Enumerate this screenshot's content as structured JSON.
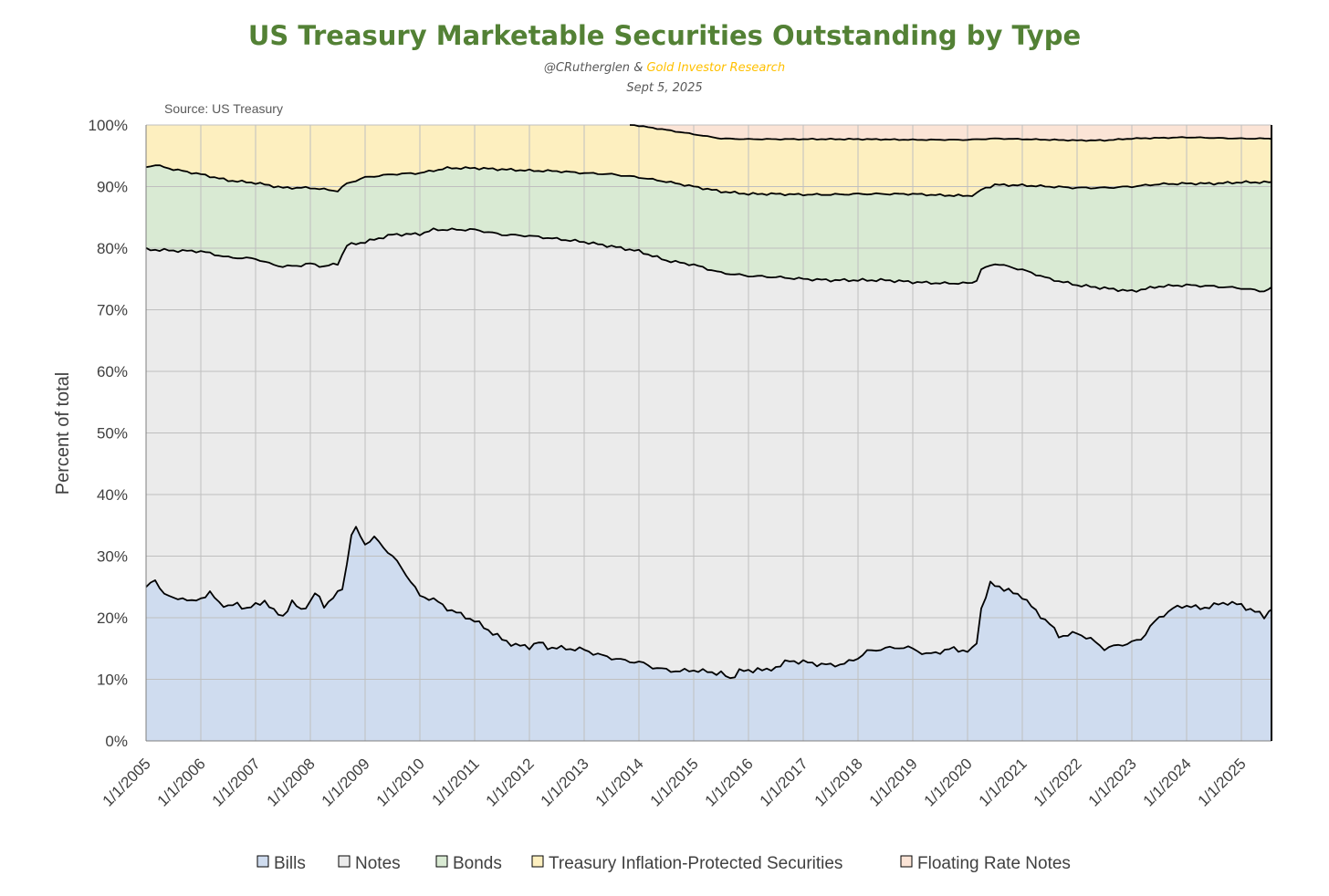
{
  "title": "US Treasury Marketable Securities Outstanding by Type",
  "byline": {
    "author": "@CRutherglen",
    "sep": " & ",
    "org": "Gold Investor Research"
  },
  "date": "Sept 5, 2025",
  "colors": {
    "title": "#538135",
    "org": "#ffc000",
    "bills": "#cfdcef",
    "notes": "#ebebeb",
    "bonds": "#d9ead3",
    "tips": "#fdefbf",
    "frn": "#fbe4d6",
    "line": "#000000",
    "grid": "#bfbfbf"
  },
  "chart_data": {
    "type": "area",
    "stacked": true,
    "source": "Source: US Treasury",
    "ylabel": "Percent of total",
    "ylim": [
      0,
      100
    ],
    "yticks": [
      "0%",
      "10%",
      "20%",
      "30%",
      "40%",
      "50%",
      "60%",
      "70%",
      "80%",
      "90%",
      "100%"
    ],
    "xlim": [
      2005.0,
      2025.55
    ],
    "xticks": [
      "1/1/2005",
      "1/1/2006",
      "1/1/2007",
      "1/1/2008",
      "1/1/2009",
      "1/1/2010",
      "1/1/2011",
      "1/1/2012",
      "1/1/2013",
      "1/1/2014",
      "1/1/2015",
      "1/1/2016",
      "1/1/2017",
      "1/1/2018",
      "1/1/2019",
      "1/1/2020",
      "1/1/2021",
      "1/1/2022",
      "1/1/2023",
      "1/1/2024",
      "1/1/2025"
    ],
    "legend": [
      "Bills",
      "Notes",
      "Bonds",
      "Treasury Inflation-Protected Securities",
      "Floating Rate Notes"
    ],
    "cumulative_boundaries": {
      "bills": [
        [
          2005.0,
          25.0
        ],
        [
          2005.17,
          26.0
        ],
        [
          2005.33,
          24.0
        ],
        [
          2005.5,
          23.0
        ],
        [
          2005.67,
          23.3
        ],
        [
          2005.83,
          22.5
        ],
        [
          2006.0,
          23.2
        ],
        [
          2006.17,
          24.0
        ],
        [
          2006.33,
          22.5
        ],
        [
          2006.5,
          21.8
        ],
        [
          2006.67,
          22.2
        ],
        [
          2006.83,
          21.5
        ],
        [
          2007.0,
          22.0
        ],
        [
          2007.17,
          22.8
        ],
        [
          2007.33,
          21.0
        ],
        [
          2007.5,
          20.3
        ],
        [
          2007.67,
          22.5
        ],
        [
          2007.83,
          21.3
        ],
        [
          2008.0,
          22.5
        ],
        [
          2008.1,
          24.2
        ],
        [
          2008.25,
          22.0
        ],
        [
          2008.4,
          23.0
        ],
        [
          2008.6,
          25.0
        ],
        [
          2008.75,
          33.5
        ],
        [
          2008.83,
          34.5
        ],
        [
          2009.0,
          32.0
        ],
        [
          2009.17,
          33.0
        ],
        [
          2009.33,
          31.5
        ],
        [
          2009.5,
          30.0
        ],
        [
          2009.67,
          28.0
        ],
        [
          2009.83,
          26.0
        ],
        [
          2010.0,
          23.5
        ],
        [
          2010.25,
          23.0
        ],
        [
          2010.5,
          21.5
        ],
        [
          2010.75,
          20.5
        ],
        [
          2011.0,
          19.5
        ],
        [
          2011.25,
          18.0
        ],
        [
          2011.5,
          16.5
        ],
        [
          2011.75,
          15.5
        ],
        [
          2012.0,
          15.3
        ],
        [
          2012.17,
          16.0
        ],
        [
          2012.33,
          15.2
        ],
        [
          2012.67,
          15.0
        ],
        [
          2013.0,
          14.8
        ],
        [
          2013.25,
          14.0
        ],
        [
          2013.5,
          13.5
        ],
        [
          2013.75,
          13.0
        ],
        [
          2014.0,
          12.8
        ],
        [
          2014.25,
          12.0
        ],
        [
          2014.5,
          11.5
        ],
        [
          2014.75,
          11.3
        ],
        [
          2015.0,
          11.5
        ],
        [
          2015.25,
          11.2
        ],
        [
          2015.5,
          11.0
        ],
        [
          2015.67,
          10.0
        ],
        [
          2015.83,
          11.5
        ],
        [
          2016.0,
          11.2
        ],
        [
          2016.17,
          11.8
        ],
        [
          2016.33,
          11.3
        ],
        [
          2016.5,
          12.0
        ],
        [
          2016.75,
          13.0
        ],
        [
          2017.0,
          12.8
        ],
        [
          2017.25,
          12.5
        ],
        [
          2017.5,
          12.3
        ],
        [
          2017.75,
          12.5
        ],
        [
          2018.0,
          13.5
        ],
        [
          2018.17,
          14.5
        ],
        [
          2018.33,
          14.8
        ],
        [
          2018.5,
          15.0
        ],
        [
          2018.75,
          15.2
        ],
        [
          2019.0,
          15.0
        ],
        [
          2019.25,
          14.0
        ],
        [
          2019.5,
          14.5
        ],
        [
          2019.75,
          15.0
        ],
        [
          2020.0,
          14.5
        ],
        [
          2020.15,
          15.0
        ],
        [
          2020.25,
          21.5
        ],
        [
          2020.42,
          25.5
        ],
        [
          2020.6,
          25.0
        ],
        [
          2020.83,
          24.0
        ],
        [
          2021.0,
          23.5
        ],
        [
          2021.25,
          21.0
        ],
        [
          2021.5,
          19.0
        ],
        [
          2021.67,
          17.0
        ],
        [
          2021.83,
          17.2
        ],
        [
          2022.0,
          17.5
        ],
        [
          2022.25,
          16.5
        ],
        [
          2022.5,
          15.0
        ],
        [
          2022.75,
          15.5
        ],
        [
          2023.0,
          16.0
        ],
        [
          2023.17,
          16.5
        ],
        [
          2023.33,
          18.5
        ],
        [
          2023.5,
          20.0
        ],
        [
          2023.75,
          21.5
        ],
        [
          2024.0,
          22.0
        ],
        [
          2024.25,
          21.5
        ],
        [
          2024.5,
          22.0
        ],
        [
          2024.75,
          22.5
        ],
        [
          2025.0,
          22.0
        ],
        [
          2025.25,
          21.0
        ],
        [
          2025.42,
          20.2
        ],
        [
          2025.55,
          21.5
        ]
      ],
      "notes": [
        [
          2005.0,
          79.8
        ],
        [
          2005.5,
          79.6
        ],
        [
          2006.0,
          79.5
        ],
        [
          2006.5,
          78.5
        ],
        [
          2007.0,
          78.3
        ],
        [
          2007.25,
          77.5
        ],
        [
          2007.5,
          77.0
        ],
        [
          2007.83,
          77.2
        ],
        [
          2008.0,
          77.5
        ],
        [
          2008.25,
          77.0
        ],
        [
          2008.5,
          77.5
        ],
        [
          2008.67,
          80.5
        ],
        [
          2009.0,
          81.0
        ],
        [
          2009.5,
          82.2
        ],
        [
          2010.0,
          82.3
        ],
        [
          2010.25,
          83.0
        ],
        [
          2011.0,
          83.0
        ],
        [
          2011.5,
          82.2
        ],
        [
          2012.0,
          82.0
        ],
        [
          2012.5,
          81.5
        ],
        [
          2013.0,
          81.0
        ],
        [
          2013.5,
          80.3
        ],
        [
          2014.0,
          79.5
        ],
        [
          2014.5,
          78.0
        ],
        [
          2015.0,
          77.3
        ],
        [
          2015.5,
          76.0
        ],
        [
          2016.0,
          75.5
        ],
        [
          2016.5,
          75.3
        ],
        [
          2017.0,
          75.0
        ],
        [
          2017.5,
          74.8
        ],
        [
          2018.0,
          74.8
        ],
        [
          2018.5,
          74.8
        ],
        [
          2019.0,
          74.5
        ],
        [
          2019.5,
          74.3
        ],
        [
          2020.0,
          74.3
        ],
        [
          2020.15,
          74.5
        ],
        [
          2020.25,
          76.5
        ],
        [
          2020.5,
          77.5
        ],
        [
          2021.0,
          76.5
        ],
        [
          2021.5,
          75.0
        ],
        [
          2022.0,
          74.0
        ],
        [
          2022.5,
          73.5
        ],
        [
          2023.0,
          73.0
        ],
        [
          2023.5,
          73.8
        ],
        [
          2024.0,
          74.0
        ],
        [
          2024.5,
          73.8
        ],
        [
          2025.0,
          73.5
        ],
        [
          2025.4,
          73.0
        ],
        [
          2025.55,
          73.5
        ]
      ],
      "bonds": [
        [
          2005.0,
          93.2
        ],
        [
          2005.17,
          93.5
        ],
        [
          2005.5,
          92.8
        ],
        [
          2006.0,
          92.0
        ],
        [
          2006.5,
          91.0
        ],
        [
          2007.0,
          90.6
        ],
        [
          2007.5,
          89.8
        ],
        [
          2008.0,
          89.8
        ],
        [
          2008.5,
          89.3
        ],
        [
          2008.67,
          90.5
        ],
        [
          2009.0,
          91.5
        ],
        [
          2009.5,
          92.0
        ],
        [
          2010.0,
          92.2
        ],
        [
          2010.5,
          93.0
        ],
        [
          2011.0,
          93.0
        ],
        [
          2011.5,
          92.8
        ],
        [
          2012.0,
          92.6
        ],
        [
          2012.5,
          92.5
        ],
        [
          2013.0,
          92.2
        ],
        [
          2013.5,
          92.0
        ],
        [
          2014.0,
          91.5
        ],
        [
          2014.5,
          90.8
        ],
        [
          2015.0,
          90.0
        ],
        [
          2015.5,
          89.2
        ],
        [
          2016.0,
          88.8
        ],
        [
          2016.5,
          88.8
        ],
        [
          2017.0,
          88.7
        ],
        [
          2017.5,
          88.7
        ],
        [
          2018.0,
          88.8
        ],
        [
          2018.5,
          88.8
        ],
        [
          2019.0,
          88.8
        ],
        [
          2019.5,
          88.6
        ],
        [
          2020.0,
          88.5
        ],
        [
          2020.15,
          88.7
        ],
        [
          2020.25,
          89.5
        ],
        [
          2020.5,
          90.3
        ],
        [
          2021.0,
          90.2
        ],
        [
          2021.5,
          90.0
        ],
        [
          2022.0,
          89.8
        ],
        [
          2022.5,
          89.8
        ],
        [
          2023.0,
          90.0
        ],
        [
          2023.5,
          90.4
        ],
        [
          2024.0,
          90.5
        ],
        [
          2024.5,
          90.5
        ],
        [
          2025.0,
          90.7
        ],
        [
          2025.55,
          90.7
        ]
      ],
      "tips": [
        [
          2005.0,
          100.0
        ],
        [
          2013.9,
          100.0
        ],
        [
          2014.5,
          99.2
        ],
        [
          2015.0,
          98.5
        ],
        [
          2015.5,
          97.8
        ],
        [
          2016.0,
          97.7
        ],
        [
          2016.5,
          97.7
        ],
        [
          2017.0,
          97.7
        ],
        [
          2018.0,
          97.7
        ],
        [
          2019.0,
          97.6
        ],
        [
          2020.0,
          97.6
        ],
        [
          2020.5,
          97.8
        ],
        [
          2021.0,
          97.7
        ],
        [
          2022.0,
          97.5
        ],
        [
          2022.5,
          97.5
        ],
        [
          2023.0,
          97.8
        ],
        [
          2023.5,
          97.9
        ],
        [
          2024.0,
          98.0
        ],
        [
          2024.5,
          97.9
        ],
        [
          2025.0,
          97.8
        ],
        [
          2025.55,
          97.8
        ]
      ]
    }
  }
}
